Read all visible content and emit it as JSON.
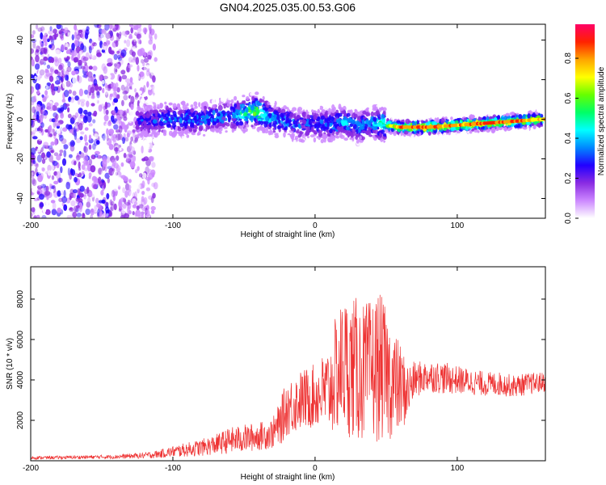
{
  "figure": {
    "title": "GN04.2025.035.00.53.G06"
  },
  "chart_data": [
    {
      "type": "heatmap",
      "title": "GN04.2025.035.00.53.G06",
      "xlabel": "Height of straight line (km)",
      "ylabel": "Frequency (Hz)",
      "xlim": [
        -200,
        162
      ],
      "ylim": [
        -50,
        48
      ],
      "x_ticks": [
        -200,
        -100,
        0,
        100
      ],
      "x_tick_labels": [
        "-200",
        "-100",
        "0",
        "100"
      ],
      "y_ticks": [
        -40,
        -20,
        0,
        20,
        40
      ],
      "y_tick_labels": [
        "-40",
        "-20",
        "0",
        "20",
        "40"
      ],
      "colorbar": {
        "label": "Normalized spectral amplitude",
        "range": [
          0,
          0.97
        ],
        "ticks": [
          0.0,
          0.2,
          0.4,
          0.6,
          0.8
        ],
        "tick_labels": [
          "0.0",
          "0.2",
          "0.4",
          "0.6",
          "0.8"
        ],
        "colors": [
          "#ffffff",
          "#cc88ff",
          "#8a2be2",
          "#2200ff",
          "#0088ff",
          "#00ffff",
          "#00ff66",
          "#66ff00",
          "#ffff00",
          "#ffa500",
          "#ff2200",
          "#ff0066"
        ]
      },
      "ridge": {
        "description_values": "dominant frequency band vs height",
        "x": [
          -125,
          -100,
          -80,
          -60,
          -40,
          -30,
          -20,
          -10,
          0,
          10,
          20,
          30,
          40,
          50,
          60,
          80,
          100,
          120,
          140,
          160
        ],
        "freq": [
          -1,
          0,
          0,
          2,
          4,
          0,
          -1,
          -3,
          -2,
          -3,
          -1,
          -4,
          -2,
          -3,
          -4,
          -4,
          -3,
          -2,
          -1,
          0
        ],
        "amplitude": [
          0.3,
          0.4,
          0.4,
          0.4,
          0.7,
          0.45,
          0.4,
          0.35,
          0.35,
          0.4,
          0.45,
          0.4,
          0.45,
          0.6,
          0.9,
          0.9,
          0.85,
          0.88,
          0.9,
          0.8
        ],
        "noise_field_xlim": [
          -200,
          -112
        ]
      },
      "grid": false
    },
    {
      "type": "line",
      "xlabel": "Height of straight line (km)",
      "ylabel": "SNR (10 * v/v)",
      "xlim": [
        -200,
        162
      ],
      "ylim": [
        0,
        9600
      ],
      "x_ticks": [
        -200,
        -100,
        0,
        100
      ],
      "x_tick_labels": [
        "-200",
        "-100",
        "0",
        "100"
      ],
      "y_ticks": [
        2000,
        4000,
        6000,
        8000
      ],
      "y_tick_labels": [
        "2000",
        "4000",
        "6000",
        "8000"
      ],
      "series": [
        {
          "color": "#ee3333",
          "x": [
            -200,
            -180,
            -160,
            -140,
            -120,
            -110,
            -100,
            -90,
            -80,
            -70,
            -60,
            -50,
            -40,
            -30,
            -25,
            -20,
            -10,
            0,
            10,
            15,
            20,
            25,
            30,
            35,
            40,
            45,
            50,
            55,
            60,
            65,
            70,
            80,
            90,
            100,
            110,
            120,
            130,
            140,
            150,
            162
          ],
          "y": [
            150,
            160,
            180,
            200,
            260,
            330,
            450,
            550,
            650,
            800,
            1000,
            1100,
            1200,
            1350,
            1800,
            2600,
            3000,
            3200,
            3500,
            4300,
            4800,
            4600,
            4500,
            4400,
            4500,
            4700,
            4300,
            3800,
            3600,
            3400,
            4000,
            4200,
            4100,
            4000,
            3900,
            3800,
            3800,
            3700,
            3800,
            3900
          ],
          "spread": [
            80,
            80,
            90,
            100,
            150,
            200,
            280,
            350,
            420,
            500,
            650,
            700,
            700,
            750,
            1100,
            1400,
            1500,
            1600,
            2200,
            3000,
            3400,
            3500,
            3600,
            3400,
            3500,
            3800,
            3200,
            2800,
            2200,
            1500,
            900,
            800,
            800,
            700,
            650,
            600,
            600,
            550,
            550,
            500
          ]
        }
      ],
      "grid": false
    }
  ]
}
